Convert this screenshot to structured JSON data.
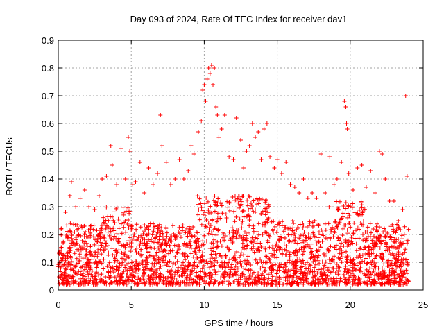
{
  "chart_data": {
    "type": "scatter",
    "title": "Day 093 of 2024, Rate Of TEC Index for receiver dav1",
    "xlabel": "GPS time / hours",
    "ylabel": "ROTI / TECUs",
    "xlim": [
      0,
      25
    ],
    "ylim": [
      0,
      0.9
    ],
    "xticks": [
      0,
      5,
      10,
      15,
      20,
      25
    ],
    "yticks": [
      0,
      0.1,
      0.2,
      0.3,
      0.4,
      0.5,
      0.6,
      0.7,
      0.8,
      0.9
    ],
    "xtick_labels": [
      "0",
      "5",
      "10",
      "15",
      "20",
      "25"
    ],
    "ytick_labels": [
      "0",
      "0.1",
      "0.2",
      "0.3",
      "0.4",
      "0.5",
      "0.6",
      "0.7",
      "0.8",
      "0.9"
    ],
    "grid": true,
    "marker": "plus",
    "color": "#ff0000",
    "x_range_of_data": [
      0,
      24
    ],
    "series": [
      {
        "points": [
          [
            0.2,
            0.22
          ],
          [
            0.5,
            0.28
          ],
          [
            0.8,
            0.34
          ],
          [
            0.9,
            0.39
          ],
          [
            1.2,
            0.3
          ],
          [
            1.5,
            0.33
          ],
          [
            1.8,
            0.36
          ],
          [
            2.1,
            0.3
          ],
          [
            2.5,
            0.29
          ],
          [
            2.8,
            0.34
          ],
          [
            3.0,
            0.4
          ],
          [
            3.3,
            0.41
          ],
          [
            3.6,
            0.52
          ],
          [
            3.7,
            0.45
          ],
          [
            4.0,
            0.38
          ],
          [
            4.3,
            0.51
          ],
          [
            4.6,
            0.4
          ],
          [
            4.8,
            0.55
          ],
          [
            4.9,
            0.5
          ],
          [
            5.1,
            0.38
          ],
          [
            5.3,
            0.39
          ],
          [
            5.6,
            0.46
          ],
          [
            5.9,
            0.35
          ],
          [
            6.2,
            0.44
          ],
          [
            6.5,
            0.38
          ],
          [
            6.8,
            0.42
          ],
          [
            7.0,
            0.63
          ],
          [
            7.1,
            0.52
          ],
          [
            7.4,
            0.46
          ],
          [
            7.7,
            0.38
          ],
          [
            8.0,
            0.4
          ],
          [
            8.3,
            0.47
          ],
          [
            8.6,
            0.4
          ],
          [
            8.9,
            0.43
          ],
          [
            9.1,
            0.52
          ],
          [
            9.3,
            0.49
          ],
          [
            9.6,
            0.57
          ],
          [
            9.8,
            0.61
          ],
          [
            9.9,
            0.72
          ],
          [
            10.0,
            0.74
          ],
          [
            10.1,
            0.68
          ],
          [
            10.2,
            0.76
          ],
          [
            10.3,
            0.8
          ],
          [
            10.4,
            0.78
          ],
          [
            10.5,
            0.81
          ],
          [
            10.6,
            0.74
          ],
          [
            10.7,
            0.8
          ],
          [
            10.8,
            0.66
          ],
          [
            10.9,
            0.63
          ],
          [
            11.0,
            0.55
          ],
          [
            11.2,
            0.58
          ],
          [
            11.4,
            0.63
          ],
          [
            11.7,
            0.48
          ],
          [
            12.0,
            0.47
          ],
          [
            12.2,
            0.62
          ],
          [
            12.5,
            0.54
          ],
          [
            12.7,
            0.44
          ],
          [
            12.9,
            0.5
          ],
          [
            13.1,
            0.52
          ],
          [
            13.3,
            0.6
          ],
          [
            13.5,
            0.55
          ],
          [
            13.7,
            0.57
          ],
          [
            13.9,
            0.47
          ],
          [
            14.1,
            0.58
          ],
          [
            14.3,
            0.6
          ],
          [
            14.5,
            0.48
          ],
          [
            14.8,
            0.44
          ],
          [
            15.0,
            0.47
          ],
          [
            15.3,
            0.42
          ],
          [
            15.6,
            0.46
          ],
          [
            15.9,
            0.38
          ],
          [
            16.2,
            0.37
          ],
          [
            16.5,
            0.35
          ],
          [
            16.8,
            0.4
          ],
          [
            17.1,
            0.33
          ],
          [
            17.4,
            0.35
          ],
          [
            17.7,
            0.33
          ],
          [
            18.0,
            0.49
          ],
          [
            18.3,
            0.35
          ],
          [
            18.6,
            0.48
          ],
          [
            18.9,
            0.38
          ],
          [
            19.1,
            0.4
          ],
          [
            19.4,
            0.46
          ],
          [
            19.6,
            0.68
          ],
          [
            19.7,
            0.66
          ],
          [
            19.75,
            0.6
          ],
          [
            19.8,
            0.58
          ],
          [
            19.9,
            0.42
          ],
          [
            20.2,
            0.36
          ],
          [
            20.5,
            0.44
          ],
          [
            20.8,
            0.45
          ],
          [
            21.1,
            0.37
          ],
          [
            21.4,
            0.43
          ],
          [
            21.7,
            0.35
          ],
          [
            22.0,
            0.5
          ],
          [
            22.2,
            0.49
          ],
          [
            22.4,
            0.4
          ],
          [
            22.7,
            0.32
          ],
          [
            23.0,
            0.32
          ],
          [
            23.3,
            0.25
          ],
          [
            23.6,
            0.29
          ],
          [
            23.8,
            0.7
          ],
          [
            23.9,
            0.41
          ]
        ]
      }
    ]
  }
}
